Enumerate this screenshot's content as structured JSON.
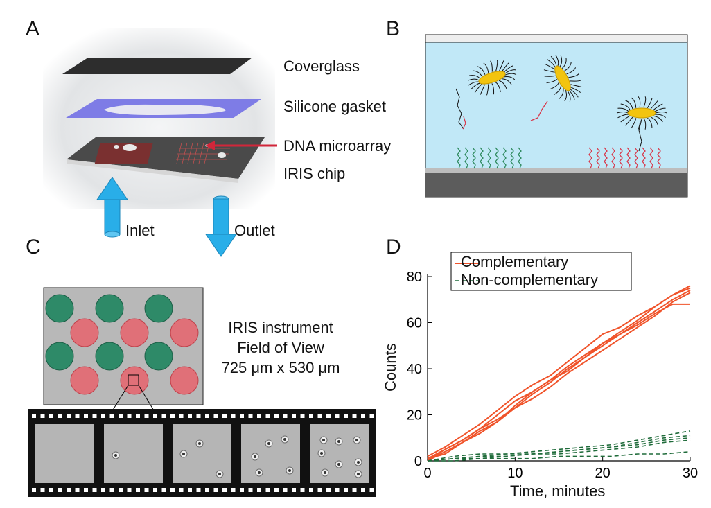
{
  "panels": {
    "a": "A",
    "b": "B",
    "c": "C",
    "d": "D"
  },
  "panel_a": {
    "coverglass": "Coverglass",
    "gasket": "Silicone gasket",
    "microarray": "DNA microarray",
    "chip": "IRIS chip",
    "inlet": "Inlet",
    "outlet": "Outlet"
  },
  "panel_c": {
    "fov_line1": "IRIS instrument",
    "fov_line2": "Field of View",
    "fov_line3": "725 μm x 530 μm"
  },
  "colors": {
    "complementary": "#f0532a",
    "noncomplementary": "#1f6b3a",
    "fluid": "#c1e8f7",
    "arrow": "#29aee8",
    "spot_green": "#2e8a68",
    "spot_red": "#e07078"
  },
  "chart_data": {
    "type": "line",
    "xlabel": "Time, minutes",
    "ylabel": "Counts",
    "xlim": [
      0,
      30
    ],
    "ylim": [
      0,
      80
    ],
    "xticks": [
      0,
      10,
      20,
      30
    ],
    "yticks": [
      0,
      20,
      40,
      60,
      80
    ],
    "legend_position": "top-left",
    "legend": [
      {
        "name": "Complementary",
        "style": "solid",
        "color": "#f0532a"
      },
      {
        "name": "Non-complementary",
        "style": "dashed",
        "color": "#1f6b3a"
      }
    ],
    "series": [
      {
        "group": "Complementary",
        "x": [
          0,
          2,
          4,
          6,
          8,
          10,
          12,
          14,
          16,
          18,
          20,
          22,
          24,
          26,
          28,
          29,
          30
        ],
        "y": [
          0,
          5,
          9,
          14,
          20,
          26,
          30,
          35,
          41,
          46,
          51,
          55,
          59,
          64,
          68,
          68,
          68
        ]
      },
      {
        "group": "Complementary",
        "x": [
          0,
          2,
          4,
          6,
          8,
          10,
          12,
          14,
          16,
          18,
          20,
          22,
          24,
          26,
          28,
          30
        ],
        "y": [
          2,
          6,
          11,
          16,
          22,
          28,
          33,
          37,
          43,
          49,
          55,
          58,
          63,
          67,
          72,
          75
        ]
      },
      {
        "group": "Complementary",
        "x": [
          0,
          2,
          4,
          6,
          8,
          10,
          12,
          14,
          16,
          18,
          20,
          22,
          24,
          26,
          28,
          30
        ],
        "y": [
          1,
          5,
          9,
          14,
          18,
          23,
          29,
          34,
          40,
          45,
          50,
          55,
          60,
          65,
          70,
          74
        ]
      },
      {
        "group": "Complementary",
        "x": [
          0,
          2,
          4,
          6,
          8,
          10,
          12,
          14,
          16,
          18,
          20,
          22,
          24,
          26,
          28,
          30
        ],
        "y": [
          0,
          4,
          8,
          13,
          17,
          24,
          30,
          35,
          39,
          45,
          51,
          56,
          61,
          67,
          72,
          76
        ]
      },
      {
        "group": "Complementary",
        "x": [
          0,
          2,
          4,
          6,
          8,
          10,
          12,
          14,
          16,
          18,
          20,
          22,
          24,
          26,
          28,
          30
        ],
        "y": [
          1,
          3,
          8,
          12,
          17,
          23,
          27,
          32,
          38,
          43,
          48,
          53,
          58,
          63,
          69,
          73
        ]
      },
      {
        "group": "Non-complementary",
        "x": [
          0,
          3,
          6,
          9,
          12,
          15,
          18,
          21,
          24,
          27,
          30
        ],
        "y": [
          0,
          1,
          2,
          2,
          3,
          3,
          4,
          5,
          6,
          8,
          9
        ]
      },
      {
        "group": "Non-complementary",
        "x": [
          0,
          3,
          6,
          9,
          12,
          15,
          18,
          21,
          24,
          27,
          30
        ],
        "y": [
          0,
          1,
          1,
          2,
          3,
          4,
          5,
          6,
          7,
          9,
          10
        ]
      },
      {
        "group": "Non-complementary",
        "x": [
          0,
          3,
          6,
          9,
          12,
          15,
          18,
          21,
          24,
          27,
          30
        ],
        "y": [
          0,
          2,
          3,
          3,
          4,
          5,
          6,
          7,
          9,
          11,
          13
        ]
      },
      {
        "group": "Non-complementary",
        "x": [
          0,
          3,
          6,
          9,
          12,
          15,
          18,
          21,
          24,
          27,
          30
        ],
        "y": [
          0,
          1,
          2,
          3,
          3,
          4,
          5,
          6,
          8,
          10,
          11
        ]
      },
      {
        "group": "Non-complementary",
        "x": [
          0,
          3,
          6,
          9,
          12,
          15,
          18,
          21,
          24,
          27,
          30
        ],
        "y": [
          0,
          0,
          1,
          1,
          1,
          2,
          2,
          2,
          3,
          3,
          4
        ]
      }
    ]
  }
}
